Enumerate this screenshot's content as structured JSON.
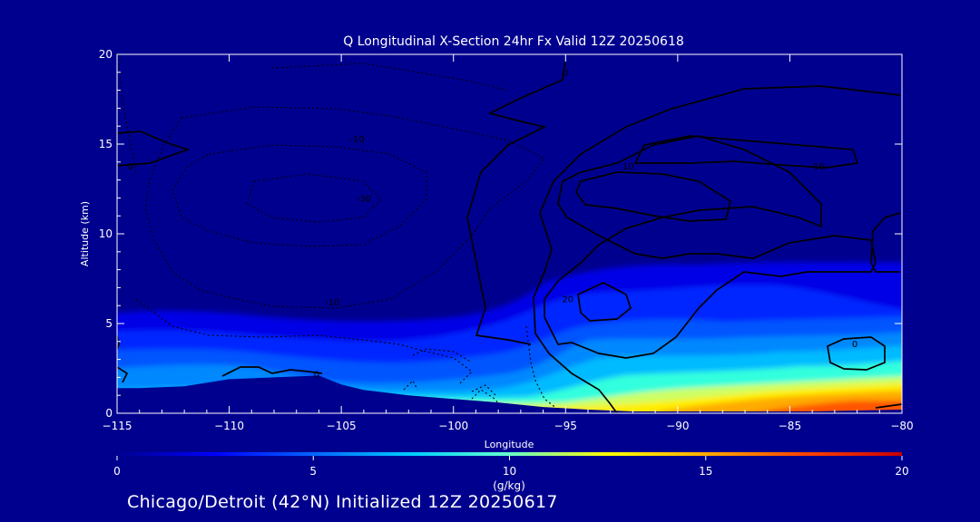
{
  "page": {
    "background": "#00008f",
    "footer_text": "Chicago/Detroit (42°N) Initialized 12Z 20250617"
  },
  "chart_data": {
    "type": "heatmap",
    "title": "Q Longitudinal X-Section 24hr  Fx Valid 12Z 20250618",
    "xlabel": "Longitude",
    "ylabel": "Altitude (km)",
    "xlim": [
      -115,
      -80
    ],
    "ylim": [
      0,
      20
    ],
    "x_ticks": [
      -115,
      -110,
      -105,
      -100,
      -95,
      -90,
      -85,
      -80
    ],
    "y_ticks": [
      0,
      5,
      10,
      15,
      20
    ],
    "colorbar": {
      "label": "(g/kg)",
      "range": [
        0,
        20
      ],
      "ticks": [
        0,
        5,
        10,
        15,
        20
      ],
      "colors": [
        "#00008f",
        "#0000ff",
        "#0066ff",
        "#00ccff",
        "#66ffcc",
        "#ffff00",
        "#ffaa00",
        "#ff4400",
        "#c80000"
      ]
    },
    "terrain_km": [
      {
        "lon": -115,
        "alt": 1.4
      },
      {
        "lon": -114,
        "alt": 1.4
      },
      {
        "lon": -112,
        "alt": 1.5
      },
      {
        "lon": -110,
        "alt": 1.9
      },
      {
        "lon": -108,
        "alt": 2.0
      },
      {
        "lon": -106,
        "alt": 2.1
      },
      {
        "lon": -105,
        "alt": 1.6
      },
      {
        "lon": -104,
        "alt": 1.3
      },
      {
        "lon": -102,
        "alt": 1.0
      },
      {
        "lon": -100,
        "alt": 0.8
      },
      {
        "lon": -98,
        "alt": 0.6
      },
      {
        "lon": -96,
        "alt": 0.35
      },
      {
        "lon": -94,
        "alt": 0.2
      },
      {
        "lon": -92,
        "alt": 0.1
      },
      {
        "lon": -88,
        "alt": 0.1
      },
      {
        "lon": -84,
        "alt": 0.1
      },
      {
        "lon": -80,
        "alt": 0.2
      }
    ],
    "contour_labels": [
      {
        "text": "0",
        "lon": -95,
        "alt": 19.0
      },
      {
        "text": "0",
        "lon": -114.4,
        "alt": 13.8
      },
      {
        "text": "-10",
        "lon": -104.3,
        "alt": 15.3
      },
      {
        "text": "-30",
        "lon": -104.0,
        "alt": 12.0
      },
      {
        "text": "-10",
        "lon": -105.4,
        "alt": 6.2
      },
      {
        "text": "10",
        "lon": -92.2,
        "alt": 13.8
      },
      {
        "text": "10",
        "lon": -83.7,
        "alt": 13.8
      },
      {
        "text": "0",
        "lon": -82.1,
        "alt": 3.9
      },
      {
        "text": "0",
        "lon": -106.1,
        "alt": 2.2
      },
      {
        "text": "20",
        "lon": -94.9,
        "alt": 6.4
      }
    ]
  }
}
